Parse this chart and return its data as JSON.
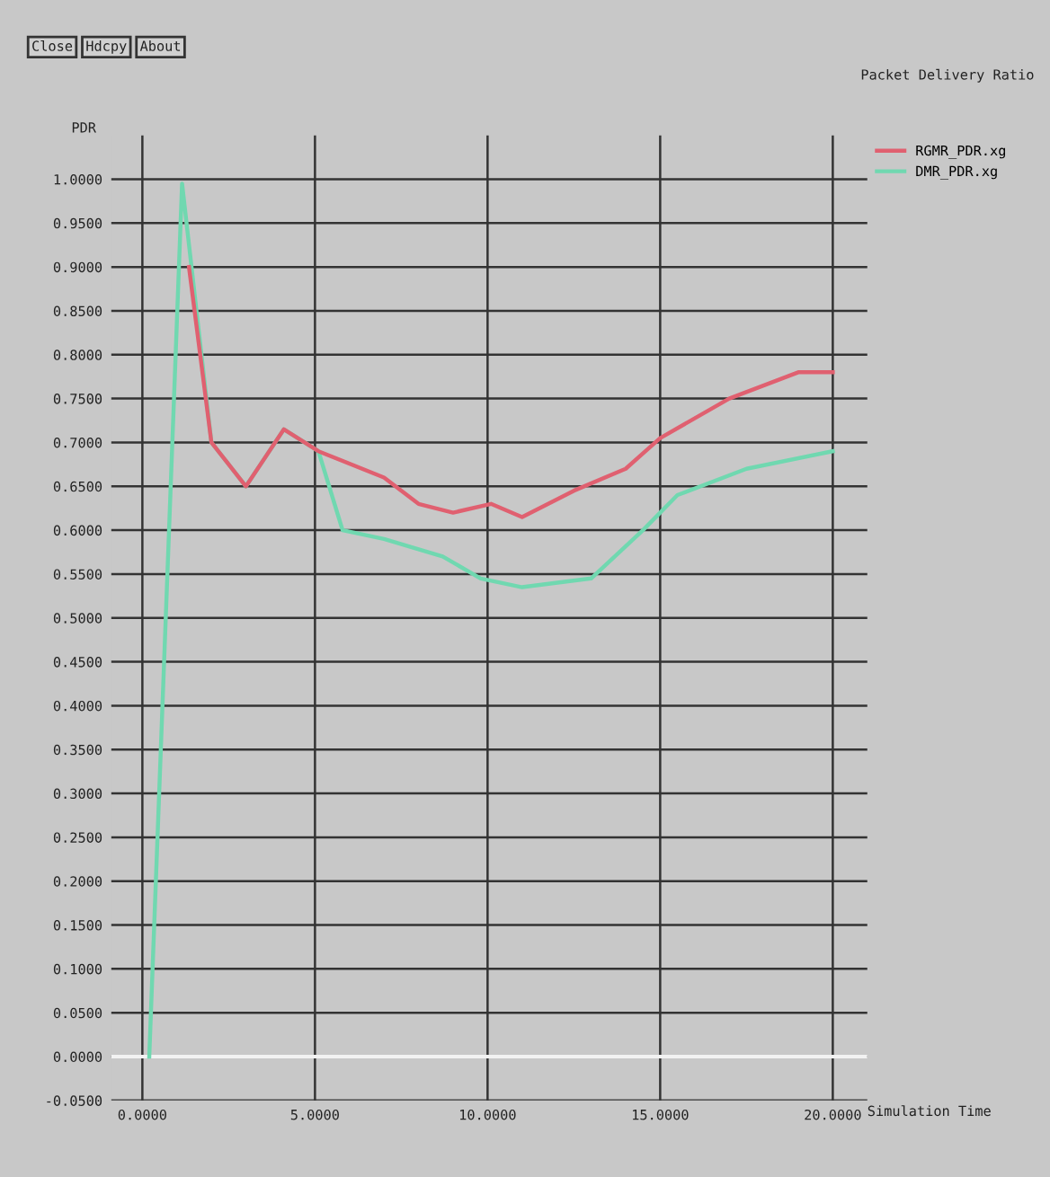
{
  "chart_data": {
    "type": "line",
    "title": "Packet Delivery Ratio",
    "ylabel": "PDR",
    "xlabel": "Simulation Time",
    "annotations": [
      "Close",
      "Hdcpy",
      "About"
    ],
    "xlim": [
      -0.9,
      21
    ],
    "ylim": [
      -0.05,
      1.05
    ],
    "xticks": [
      {
        "value": 0,
        "label": "0.0000"
      },
      {
        "value": 5,
        "label": "5.0000"
      },
      {
        "value": 10,
        "label": "10.0000"
      },
      {
        "value": 15,
        "label": "15.0000"
      },
      {
        "value": 20,
        "label": "20.0000"
      }
    ],
    "yticks": [
      {
        "value": -0.05,
        "label": "-0.0500"
      },
      {
        "value": 0,
        "label": "0.0000"
      },
      {
        "value": 0.05,
        "label": "0.0500"
      },
      {
        "value": 0.1,
        "label": "0.1000"
      },
      {
        "value": 0.15,
        "label": "0.1500"
      },
      {
        "value": 0.2,
        "label": "0.2000"
      },
      {
        "value": 0.25,
        "label": "0.2500"
      },
      {
        "value": 0.3,
        "label": "0.3000"
      },
      {
        "value": 0.35,
        "label": "0.3500"
      },
      {
        "value": 0.4,
        "label": "0.4000"
      },
      {
        "value": 0.45,
        "label": "0.4500"
      },
      {
        "value": 0.5,
        "label": "0.5000"
      },
      {
        "value": 0.55,
        "label": "0.5500"
      },
      {
        "value": 0.6,
        "label": "0.6000"
      },
      {
        "value": 0.65,
        "label": "0.6500"
      },
      {
        "value": 0.7,
        "label": "0.7000"
      },
      {
        "value": 0.75,
        "label": "0.7500"
      },
      {
        "value": 0.8,
        "label": "0.8000"
      },
      {
        "value": 0.85,
        "label": "0.8500"
      },
      {
        "value": 0.9,
        "label": "0.9000"
      },
      {
        "value": 0.95,
        "label": "0.9500"
      },
      {
        "value": 1.0,
        "label": "1.0000"
      }
    ],
    "grid": true,
    "legend": "top right",
    "marker": "none",
    "line_style": "solid",
    "ref_lines": [
      {
        "axis": "y",
        "value": 0,
        "color": "#f2f2f2"
      }
    ],
    "series": [
      {
        "name": "RGMR_PDR.xg",
        "color": "#e06070",
        "x": [
          1.35,
          2.0,
          3.0,
          4.1,
          5.1,
          7.0,
          8.0,
          9.0,
          10.1,
          11.0,
          12.5,
          14.0,
          15.0,
          17.0,
          19.0,
          20.0
        ],
        "values": [
          0.9,
          0.7,
          0.65,
          0.715,
          0.69,
          0.66,
          0.63,
          0.62,
          0.63,
          0.615,
          0.645,
          0.67,
          0.705,
          0.75,
          0.78,
          0.78
        ]
      },
      {
        "name": "DMR_PDR.xg",
        "color": "#70d8b0",
        "x": [
          0.2,
          1.15,
          2.0,
          3.0,
          4.1,
          5.1,
          5.8,
          7.0,
          8.7,
          9.8,
          11.0,
          13.0,
          14.5,
          15.5,
          17.5,
          20.0
        ],
        "values": [
          0.0,
          0.995,
          0.7,
          0.65,
          0.715,
          0.69,
          0.6,
          0.59,
          0.57,
          0.545,
          0.535,
          0.545,
          0.6,
          0.64,
          0.67,
          0.69
        ]
      }
    ]
  }
}
